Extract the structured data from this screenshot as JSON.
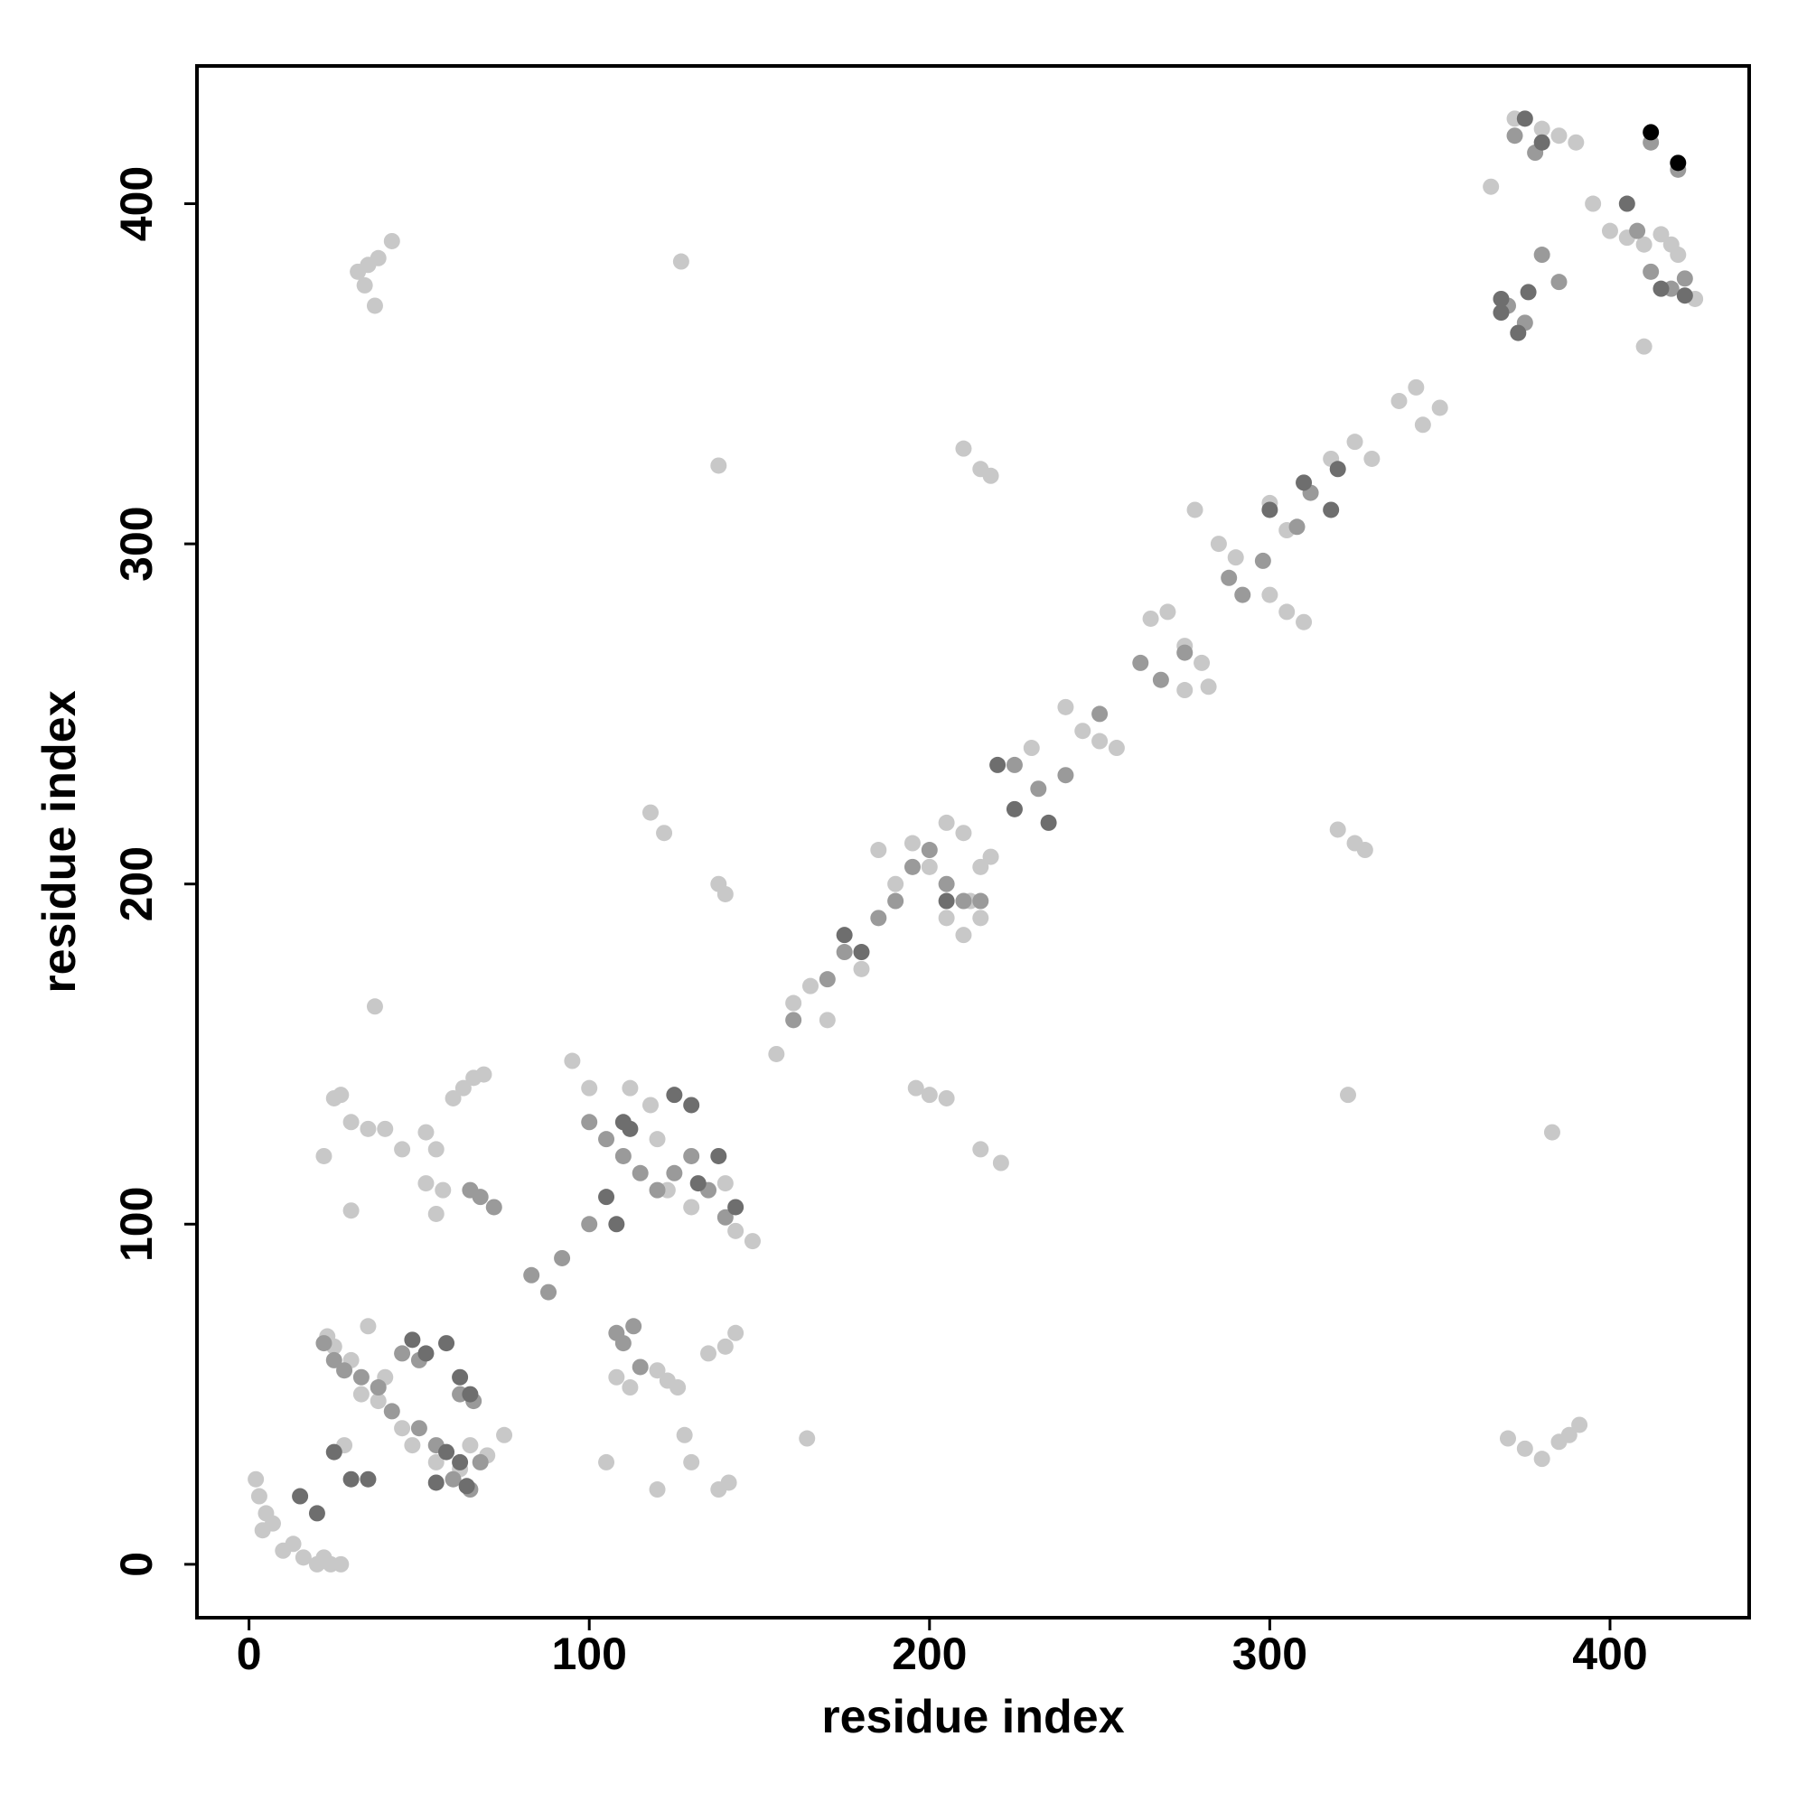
{
  "chart_data": {
    "type": "scatter",
    "xlabel": "residue index",
    "ylabel": "residue index",
    "xlim": [
      -15.3,
      440.9
    ],
    "ylim": [
      -15.7,
      440.5
    ],
    "xticks": [
      0,
      100,
      200,
      300,
      400
    ],
    "yticks": [
      0,
      100,
      200,
      300,
      400
    ],
    "series": [
      {
        "color": "#c8c8c8",
        "x": [
          2,
          3,
          5,
          7,
          4,
          10,
          13,
          16,
          20,
          24,
          27,
          22,
          23,
          25,
          30,
          35,
          33,
          38,
          45,
          48,
          55,
          62,
          65,
          70,
          75,
          40,
          28,
          32,
          35,
          38,
          42,
          37,
          34,
          37,
          22,
          25,
          27,
          30,
          35,
          40,
          45,
          52,
          55,
          52,
          57,
          55,
          60,
          63,
          66,
          69,
          30,
          105,
          108,
          112,
          120,
          123,
          126,
          128,
          130,
          138,
          141,
          140,
          143,
          135,
          120,
          164,
          95,
          100,
          112,
          118,
          120,
          123,
          130,
          140,
          148,
          143,
          118,
          122,
          138,
          140,
          127,
          138,
          196,
          200,
          205,
          215,
          221,
          155,
          160,
          165,
          170,
          180,
          190,
          185,
          195,
          200,
          205,
          210,
          212,
          215,
          218,
          205,
          210,
          215,
          230,
          240,
          245,
          250,
          255,
          265,
          270,
          275,
          280,
          282,
          275,
          278,
          285,
          290,
          300,
          305,
          300,
          305,
          310,
          318,
          325,
          330,
          338,
          343,
          345,
          350,
          210,
          215,
          218,
          320,
          325,
          328,
          323,
          383,
          370,
          375,
          380,
          385,
          388,
          391,
          365,
          372,
          380,
          385,
          390,
          395,
          400,
          405,
          410,
          415,
          420,
          425,
          418,
          410
        ],
        "values": [
          25,
          20,
          15,
          12,
          10,
          4,
          6,
          2,
          0,
          0,
          0,
          2,
          67,
          64,
          60,
          70,
          50,
          48,
          40,
          35,
          30,
          28,
          35,
          32,
          38,
          55,
          35,
          380,
          382,
          384,
          389,
          370,
          376,
          164,
          120,
          137,
          138,
          130,
          128,
          128,
          122,
          127,
          122,
          112,
          110,
          103,
          137,
          140,
          143,
          144,
          104,
          30,
          55,
          52,
          57,
          54,
          52,
          38,
          30,
          22,
          24,
          64,
          68,
          62,
          22,
          37,
          148,
          140,
          140,
          135,
          125,
          110,
          105,
          112,
          95,
          98,
          221,
          215,
          200,
          197,
          383,
          323,
          140,
          138,
          137,
          122,
          118,
          150,
          165,
          170,
          160,
          175,
          200,
          210,
          212,
          205,
          218,
          215,
          195,
          205,
          208,
          190,
          185,
          190,
          240,
          252,
          245,
          242,
          240,
          278,
          280,
          270,
          265,
          258,
          257,
          310,
          300,
          296,
          312,
          304,
          285,
          280,
          277,
          325,
          330,
          325,
          342,
          346,
          335,
          340,
          328,
          322,
          320,
          216,
          212,
          210,
          138,
          127,
          37,
          34,
          31,
          36,
          38,
          41,
          405,
          425,
          422,
          420,
          418,
          400,
          392,
          390,
          388,
          391,
          385,
          372,
          388,
          358
        ]
      },
      {
        "color": "#9a9a9a",
        "x": [
          22,
          25,
          28,
          33,
          38,
          42,
          50,
          55,
          60,
          65,
          68,
          45,
          50,
          62,
          66,
          65,
          68,
          72,
          108,
          110,
          113,
          115,
          100,
          105,
          110,
          115,
          120,
          125,
          130,
          135,
          140,
          83,
          88,
          92,
          100,
          160,
          170,
          175,
          185,
          190,
          195,
          200,
          205,
          210,
          215,
          225,
          232,
          240,
          250,
          262,
          268,
          275,
          288,
          292,
          298,
          308,
          312,
          370,
          375,
          380,
          385,
          372,
          378,
          408,
          412,
          418,
          422,
          420,
          412
        ],
        "values": [
          65,
          60,
          57,
          55,
          52,
          45,
          40,
          35,
          25,
          22,
          30,
          62,
          60,
          50,
          48,
          110,
          108,
          105,
          68,
          65,
          70,
          58,
          130,
          125,
          120,
          115,
          110,
          115,
          120,
          110,
          102,
          85,
          80,
          90,
          100,
          160,
          172,
          180,
          190,
          195,
          205,
          210,
          200,
          195,
          195,
          235,
          228,
          232,
          250,
          265,
          260,
          268,
          290,
          285,
          295,
          305,
          315,
          370,
          365,
          385,
          377,
          420,
          415,
          392,
          380,
          375,
          378,
          410,
          418
        ]
      },
      {
        "color": "#6e6e6e",
        "x": [
          15,
          20,
          25,
          30,
          35,
          48,
          52,
          58,
          62,
          65,
          58,
          55,
          64,
          62,
          105,
          108,
          110,
          112,
          125,
          130,
          132,
          138,
          143,
          220,
          225,
          235,
          180,
          175,
          205,
          300,
          310,
          320,
          318,
          368,
          373,
          376,
          368,
          405,
          415,
          422,
          375,
          380
        ],
        "values": [
          20,
          15,
          33,
          25,
          25,
          66,
          62,
          65,
          55,
          50,
          33,
          24,
          23,
          30,
          108,
          100,
          130,
          128,
          138,
          135,
          112,
          120,
          105,
          235,
          222,
          218,
          180,
          185,
          195,
          310,
          318,
          322,
          310,
          368,
          362,
          374,
          372,
          400,
          375,
          373,
          425,
          418
        ]
      },
      {
        "color": "#000000",
        "x": [
          412,
          420
        ],
        "values": [
          421,
          412
        ]
      }
    ]
  }
}
